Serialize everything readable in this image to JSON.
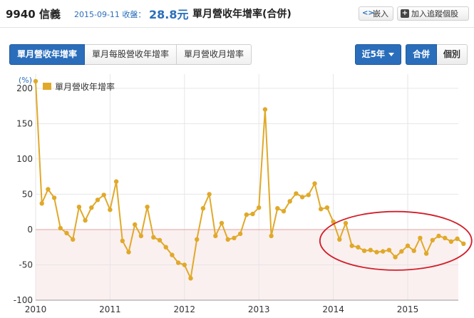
{
  "header": {
    "code_name": "9940 信義",
    "date_label": "2015-09-11 收盤：",
    "price": "28.8元",
    "chart_title": "單月營收年增率(合併)",
    "embed_label": "嵌入",
    "track_label": "加入追蹤個股"
  },
  "tabs": [
    {
      "label": "單月營收年增率",
      "active": true
    },
    {
      "label": "單月每股營收年增率",
      "active": false
    },
    {
      "label": "單月營收月增率",
      "active": false
    }
  ],
  "controls": {
    "period_label": "近5年",
    "merged_label": "合併",
    "individual_label": "個別"
  },
  "colors": {
    "series": "#e0a92a",
    "accent": "#2a6ebb",
    "annotation": "#d21f2b",
    "negative_band": "#fbf0f0"
  },
  "chart_data": {
    "type": "line",
    "unit_label": "(%)",
    "legend": [
      "單月營收年增率"
    ],
    "legend_position": "top-left",
    "grid": true,
    "xlim": [
      2010,
      2015.68
    ],
    "ylim": [
      -100,
      220
    ],
    "ytick_values": [
      200,
      150,
      100,
      50,
      0,
      -50,
      -100
    ],
    "ytick_labels": [
      "200",
      "150",
      "100",
      "50",
      "0",
      "-50",
      "-100"
    ],
    "xtick_values": [
      2010,
      2011,
      2012,
      2013,
      2014,
      2015
    ],
    "xtick_labels": [
      "2010",
      "2011",
      "2012",
      "2013",
      "2014",
      "2015"
    ],
    "annotation": "red ellipse highlighting 2014-2015 values",
    "series": [
      {
        "name": "單月營收年增率",
        "points": [
          [
            "2010-01",
            210
          ],
          [
            "2010-02",
            37
          ],
          [
            "2010-03",
            57
          ],
          [
            "2010-04",
            45
          ],
          [
            "2010-05",
            2
          ],
          [
            "2010-06",
            -5
          ],
          [
            "2010-07",
            -14
          ],
          [
            "2010-08",
            32
          ],
          [
            "2010-09",
            13
          ],
          [
            "2010-10",
            31
          ],
          [
            "2010-11",
            42
          ],
          [
            "2010-12",
            49
          ],
          [
            "2011-01",
            28
          ],
          [
            "2011-02",
            68
          ],
          [
            "2011-03",
            -16
          ],
          [
            "2011-04",
            -32
          ],
          [
            "2011-05",
            7
          ],
          [
            "2011-06",
            -9
          ],
          [
            "2011-07",
            32
          ],
          [
            "2011-08",
            -11
          ],
          [
            "2011-09",
            -15
          ],
          [
            "2011-10",
            -25
          ],
          [
            "2011-11",
            -36
          ],
          [
            "2011-12",
            -47
          ],
          [
            "2012-01",
            -50
          ],
          [
            "2012-02",
            -69
          ],
          [
            "2012-03",
            -14
          ],
          [
            "2012-04",
            30
          ],
          [
            "2012-05",
            50
          ],
          [
            "2012-06",
            -9
          ],
          [
            "2012-07",
            9
          ],
          [
            "2012-08",
            -14
          ],
          [
            "2012-09",
            -12
          ],
          [
            "2012-10",
            -6
          ],
          [
            "2012-11",
            21
          ],
          [
            "2012-12",
            22
          ],
          [
            "2013-01",
            31
          ],
          [
            "2013-02",
            170
          ],
          [
            "2013-03",
            -9
          ],
          [
            "2013-04",
            30
          ],
          [
            "2013-05",
            26
          ],
          [
            "2013-06",
            40
          ],
          [
            "2013-07",
            51
          ],
          [
            "2013-08",
            46
          ],
          [
            "2013-09",
            49
          ],
          [
            "2013-10",
            65
          ],
          [
            "2013-11",
            29
          ],
          [
            "2013-12",
            31
          ],
          [
            "2014-01",
            11
          ],
          [
            "2014-02",
            -14
          ],
          [
            "2014-03",
            9
          ],
          [
            "2014-04",
            -23
          ],
          [
            "2014-05",
            -25
          ],
          [
            "2014-06",
            -30
          ],
          [
            "2014-07",
            -29
          ],
          [
            "2014-08",
            -32
          ],
          [
            "2014-09",
            -31
          ],
          [
            "2014-10",
            -29
          ],
          [
            "2014-11",
            -39
          ],
          [
            "2014-12",
            -31
          ],
          [
            "2015-01",
            -23
          ],
          [
            "2015-02",
            -30
          ],
          [
            "2015-03",
            -12
          ],
          [
            "2015-04",
            -34
          ],
          [
            "2015-05",
            -15
          ],
          [
            "2015-06",
            -9
          ],
          [
            "2015-07",
            -12
          ],
          [
            "2015-08",
            -17
          ],
          [
            "2015-09",
            -13
          ],
          [
            "2015-10",
            -20
          ]
        ]
      }
    ]
  }
}
